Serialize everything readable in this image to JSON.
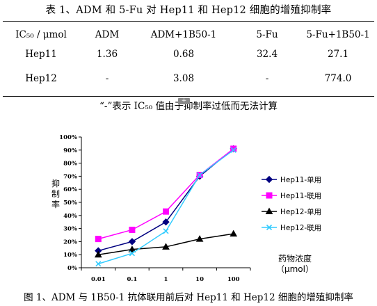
{
  "document": {
    "table_title": "表 1、ADM 和 5-Fu 对 Hep11 和 Hep12 细胞的增殖抑制率",
    "note": "“-”表示 IC₅₀ 值由于抑制率过低而无法计算",
    "figure_caption": "图 1、ADM 与 1B50-1 抗体联用前后对 Hep11 和 Hep12 细胞的增殖抑制率",
    "expand_button": "+"
  },
  "ic50_table": {
    "headers": [
      "IC₅₀ / μmol",
      "ADM",
      "ADM+1B50-1",
      "5-Fu",
      "5-Fu+1B50-1"
    ],
    "rows": [
      [
        "Hep11",
        "1.36",
        "0.68",
        "32.4",
        "27.1"
      ],
      [
        "Hep12",
        "-",
        "3.08",
        "-",
        "774.0"
      ]
    ]
  },
  "chart_data": {
    "type": "line",
    "x_scale": "log",
    "categories": [
      "0.01",
      "0.1",
      "1",
      "10",
      "100"
    ],
    "x": [
      0.01,
      0.1,
      1,
      10,
      100
    ],
    "ylabel": "抑制率",
    "xlabel": "药物浓度（μmol）",
    "ylim": [
      0,
      100
    ],
    "y_ticks": [
      "0%",
      "10%",
      "20%",
      "30%",
      "40%",
      "50%",
      "60%",
      "70%",
      "80%",
      "90%",
      "100%"
    ],
    "legend_position": "right",
    "series": [
      {
        "name": "Hep11-单用",
        "values": [
          13,
          20,
          35,
          70,
          91
        ],
        "color": "#000080",
        "marker": "diamond"
      },
      {
        "name": "Hep11-联用",
        "values": [
          22,
          29,
          43,
          71,
          91
        ],
        "color": "#ff00ff",
        "marker": "square"
      },
      {
        "name": "Hep12-单用",
        "values": [
          10,
          14,
          16,
          22,
          26
        ],
        "color": "#000000",
        "marker": "triangle"
      },
      {
        "name": "Hep12-联用",
        "values": [
          3,
          11,
          28,
          71,
          90
        ],
        "color": "#33ccff",
        "marker": "x"
      }
    ]
  }
}
